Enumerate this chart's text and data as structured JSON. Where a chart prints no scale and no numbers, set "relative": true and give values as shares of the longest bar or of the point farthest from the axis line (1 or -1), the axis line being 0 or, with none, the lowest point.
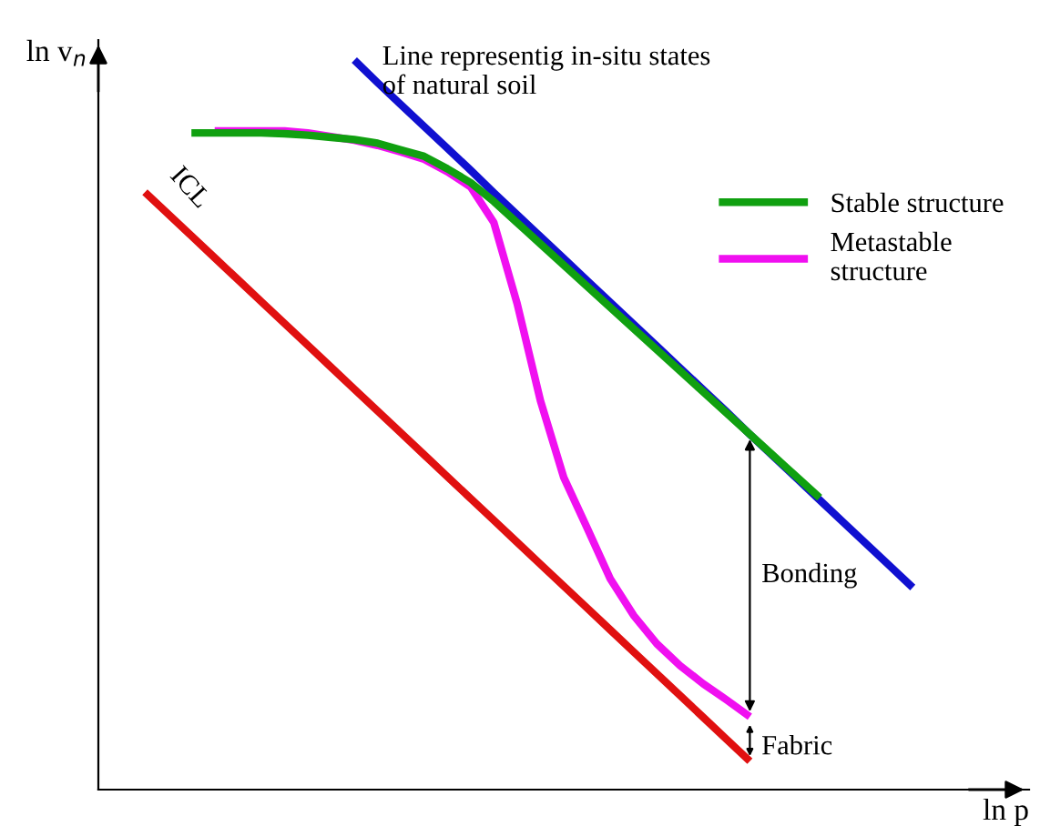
{
  "chart_data": {
    "type": "line",
    "relative": true,
    "xlabel": "ln p",
    "ylabel": "ln v$_{n}$",
    "legend": "top right",
    "categories": [
      null,
      null,
      null,
      null,
      null,
      null,
      null,
      null,
      null,
      null,
      null,
      null,
      null,
      null,
      null,
      null,
      null,
      null,
      null,
      null,
      null,
      null,
      null,
      null,
      null,
      null,
      null,
      null,
      null,
      null,
      null,
      null,
      null,
      null,
      null,
      null,
      null,
      null,
      null,
      null,
      null
    ],
    "series": [
      {
        "name": "Line representig in-situ states of natural soil",
        "color": "#1010d0",
        "values": [
          null,
          null,
          null,
          null,
          null,
          null,
          null,
          null,
          null,
          null,
          null,
          1.0,
          0.969,
          0.939,
          0.909,
          0.879,
          0.849,
          0.818,
          0.788,
          0.758,
          0.728,
          0.698,
          0.668,
          0.638,
          0.608,
          0.578,
          0.548,
          0.518,
          0.487,
          0.457,
          0.427,
          0.397,
          0.367,
          0.337,
          0.307,
          0.277,
          null,
          null,
          null,
          null,
          null
        ]
      },
      {
        "name": "Stable structure",
        "color": "#10a010",
        "values": [
          null,
          null,
          null,
          null,
          0.9,
          0.9,
          0.9,
          0.9,
          0.899,
          0.897,
          0.894,
          0.891,
          0.886,
          0.877,
          0.868,
          0.851,
          0.832,
          0.806,
          0.777,
          0.748,
          0.719,
          0.69,
          0.661,
          0.632,
          0.603,
          0.574,
          0.545,
          0.516,
          0.487,
          0.458,
          0.429,
          0.4,
          null,
          null,
          null,
          null,
          null,
          null,
          null,
          null,
          null
        ]
      },
      {
        "name": "Metastable structure",
        "color": "#f010f0",
        "values": [
          null,
          null,
          null,
          null,
          null,
          0.903,
          0.903,
          0.903,
          0.903,
          0.9,
          0.895,
          0.89,
          0.883,
          0.874,
          0.864,
          0.847,
          0.826,
          0.777,
          0.666,
          0.533,
          0.428,
          0.359,
          0.289,
          0.239,
          0.2,
          0.17,
          0.145,
          0.123,
          0.1,
          null,
          null,
          null,
          null,
          null,
          null,
          null,
          null,
          null,
          null,
          null,
          null
        ]
      },
      {
        "name": "ICL",
        "color": "#e01010",
        "values": [
          null,
          null,
          0.819,
          0.789,
          0.759,
          0.729,
          0.699,
          0.669,
          0.639,
          0.609,
          0.579,
          0.549,
          0.519,
          0.489,
          0.459,
          0.429,
          0.399,
          0.369,
          0.339,
          0.309,
          0.279,
          0.249,
          0.219,
          0.189,
          0.159,
          0.129,
          0.099,
          0.069,
          0.039,
          null,
          null,
          null,
          null,
          null,
          null,
          null,
          null,
          null,
          null,
          null,
          null
        ]
      }
    ],
    "annotations": [
      "Bonding",
      "Fabric"
    ]
  }
}
